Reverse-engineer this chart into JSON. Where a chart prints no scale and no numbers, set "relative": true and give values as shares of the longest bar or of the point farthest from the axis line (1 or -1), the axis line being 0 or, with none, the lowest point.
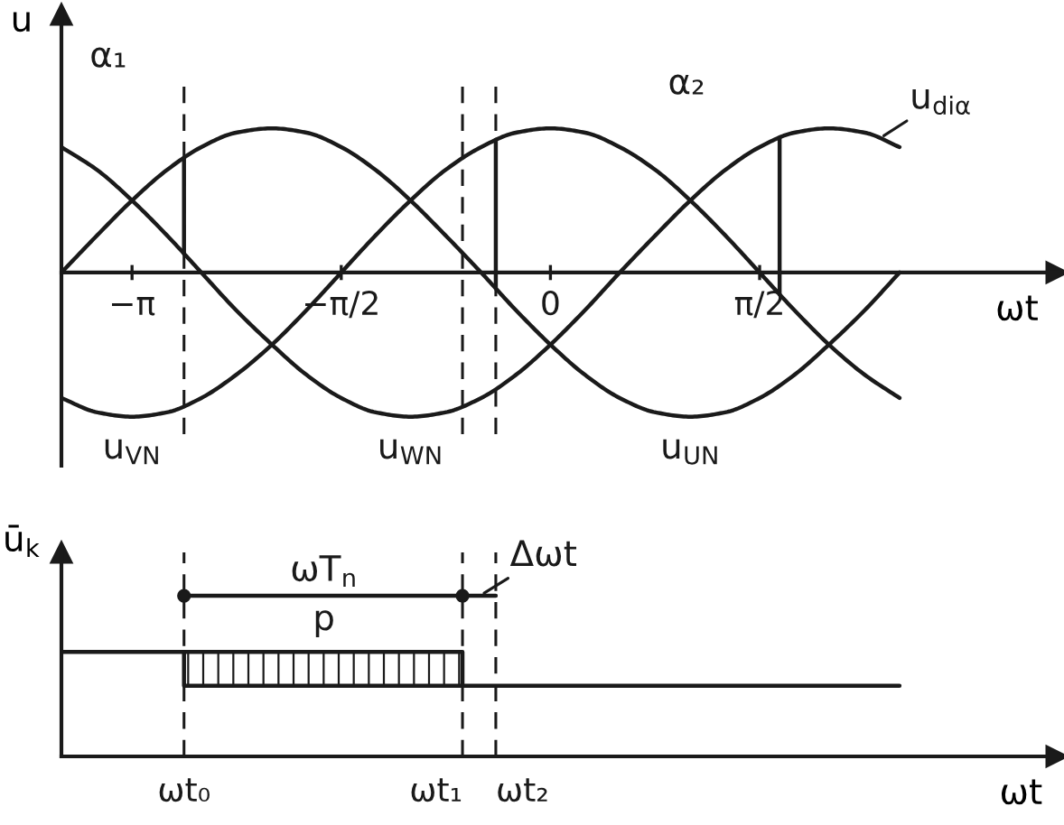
{
  "chart_data": [
    {
      "type": "line",
      "ylabel": "u",
      "xlabel": "ωt",
      "relative": true,
      "tick_labels": "x",
      "line_style": "solid",
      "marker": "none",
      "xlim": [
        -3.67,
        3.8
      ],
      "xticks": [
        {
          "value": -3.14,
          "label": "−π"
        },
        {
          "value": -1.57,
          "label": "−π/2"
        },
        0,
        {
          "value": 1.57,
          "label": "π/2"
        }
      ],
      "x": [
        -3.67,
        -3.4,
        -3.14,
        -2.88,
        -2.62,
        -2.36,
        -2.09,
        -1.83,
        -1.57,
        -1.31,
        -1.05,
        -0.79,
        -0.52,
        -0.26,
        0,
        0.26,
        0.52,
        0.79,
        1.05,
        1.31,
        1.57,
        1.83,
        2.09,
        2.36,
        2.62
      ],
      "series": [
        {
          "color": "#1a1a1a",
          "values": [
            0,
            0.26,
            0.5,
            0.71,
            0.87,
            0.97,
            1,
            0.97,
            0.87,
            0.71,
            0.5,
            0.26,
            0,
            -0.26,
            -0.5,
            -0.71,
            -0.87,
            -0.97,
            -1,
            -0.97,
            -0.87,
            -0.71,
            -0.5,
            -0.26,
            0
          ]
        },
        {
          "color": "#1a1a1a",
          "values": [
            -0.87,
            -0.97,
            -1,
            -0.97,
            -0.87,
            -0.71,
            -0.5,
            -0.26,
            0,
            0.26,
            0.5,
            0.71,
            0.87,
            0.97,
            1,
            0.97,
            0.87,
            0.71,
            0.5,
            0.26,
            0,
            -0.26,
            -0.5,
            -0.71,
            -0.87
          ]
        },
        {
          "color": "#1a1a1a",
          "values": [
            0.87,
            0.71,
            0.5,
            0.26,
            0,
            -0.26,
            -0.5,
            -0.71,
            -0.87,
            -0.97,
            -1,
            -0.97,
            -0.87,
            -0.71,
            -0.5,
            -0.26,
            0,
            0.26,
            0.5,
            0.71,
            0.87,
            0.97,
            1,
            0.97,
            0.87
          ]
        },
        {
          "color": "#1a1a1a",
          "x": [
            -2.75,
            -2.75
          ],
          "values": [
            0.13,
            0.79
          ]
        },
        {
          "color": "#1a1a1a",
          "x": [
            -0.41,
            -0.41
          ],
          "values": [
            -0.11,
            0.92
          ]
        },
        {
          "color": "#1a1a1a",
          "x": [
            1.72,
            1.72
          ],
          "values": [
            -0.15,
            0.93
          ]
        }
      ],
      "ref_lines": [
        {
          "axis": "x",
          "value": -2.75,
          "line_style": "dashed"
        },
        {
          "axis": "x",
          "value": -0.66,
          "line_style": "dashed"
        },
        {
          "axis": "x",
          "value": -0.41,
          "line_style": "dashed"
        }
      ],
      "annotations": [
        "α₁",
        "α₂",
        {
          "text": "u$_{diα}$",
          "x": 2.47,
          "y": 0.93
        },
        {
          "text": "u$_{VN}$",
          "x": -3.14,
          "y": -1
        },
        {
          "text": "u$_{WN}$",
          "x": -1.05,
          "y": -1
        },
        {
          "text": "u$_{UN}$",
          "x": 1.05,
          "y": -1
        }
      ]
    },
    {
      "type": "line",
      "ylabel": "ū$_{k}$",
      "xlabel": "ωt",
      "relative": true,
      "tick_labels": false,
      "line_style": "solid",
      "marker": "none",
      "xlim": [
        -3.67,
        3.8
      ],
      "series": [
        {
          "color": "#1a1a1a",
          "x": [
            -3.67,
            -2.75,
            -0.66,
            -0.66
          ],
          "values": [
            0.65,
            0.65,
            0.65,
            0.44
          ],
          "lower": [
            null,
            0.44,
            0.44,
            null
          ],
          "upper": [
            null,
            0.65,
            0.65,
            null
          ]
        },
        {
          "color": "#1a1a1a",
          "x": [
            -2.75,
            -2.75,
            2.62
          ],
          "values": [
            0.65,
            0.44,
            0.44
          ]
        },
        {
          "color": "#1a1a1a",
          "x": [
            -2.75,
            -0.66
          ],
          "values": [
            1,
            1
          ],
          "marker": "circle"
        },
        {
          "color": "#1a1a1a",
          "x": [
            -0.66,
            -0.41
          ],
          "values": [
            1,
            1
          ]
        }
      ],
      "ref_lines": [
        {
          "axis": "x",
          "value": -2.75,
          "line_style": "dashed",
          "label": "ωt₀"
        },
        {
          "axis": "x",
          "value": -0.66,
          "line_style": "dashed",
          "label": "ωt₁"
        },
        {
          "axis": "x",
          "value": -0.41,
          "line_style": "dashed",
          "label": "ωt₂"
        }
      ],
      "annotations": [
        {
          "text": "ωT$_{n}$",
          "x": -1.7,
          "y": 1
        },
        {
          "text": "p",
          "x": -1.7,
          "y": 1
        },
        {
          "text": "Δωt",
          "x": -0.53,
          "y": 1
        }
      ]
    }
  ]
}
